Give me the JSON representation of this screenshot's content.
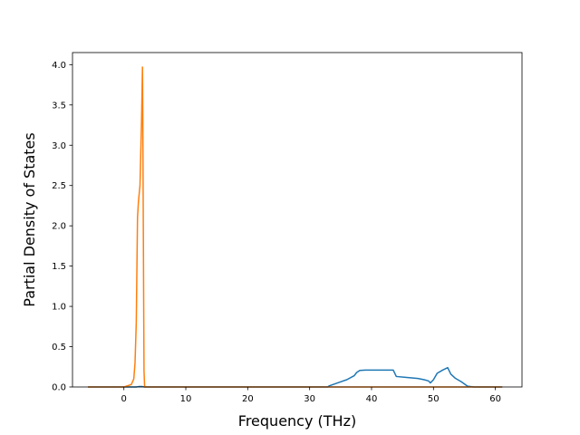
{
  "chart_data": {
    "type": "line",
    "title": "",
    "xlabel": "Frequency (THz)",
    "ylabel": "Partial Density of States",
    "xlim": [
      -8.3,
      64.3
    ],
    "ylim": [
      0,
      4.15
    ],
    "xticks": [
      0,
      10,
      20,
      30,
      40,
      50,
      60
    ],
    "yticks": [
      0.0,
      0.5,
      1.0,
      1.5,
      2.0,
      2.5,
      3.0,
      3.5,
      4.0
    ],
    "xtick_labels": [
      "0",
      "10",
      "20",
      "30",
      "40",
      "50",
      "60"
    ],
    "ytick_labels": [
      "0.0",
      "0.5",
      "1.0",
      "1.5",
      "2.0",
      "2.5",
      "3.0",
      "3.5",
      "4.0"
    ],
    "grid": false,
    "legend": "none",
    "series": [
      {
        "color": "#1f77b4",
        "x": [
          -5.7,
          0,
          2.0,
          2.4,
          3.0,
          3.3,
          30,
          32.9,
          33.2,
          34.5,
          36.0,
          37.2,
          37.6,
          38.1,
          39.0,
          40.5,
          42.0,
          43.5,
          44.0,
          45.5,
          47.5,
          48.5,
          49.2,
          49.5,
          50.0,
          50.6,
          51.5,
          52.3,
          52.8,
          53.5,
          54.5,
          55.5,
          56.5,
          61.0
        ],
        "y": [
          0,
          0,
          0,
          0.005,
          0.005,
          0,
          0,
          0,
          0.015,
          0.05,
          0.09,
          0.14,
          0.18,
          0.205,
          0.21,
          0.21,
          0.21,
          0.21,
          0.13,
          0.12,
          0.105,
          0.09,
          0.075,
          0.05,
          0.09,
          0.17,
          0.21,
          0.24,
          0.16,
          0.11,
          0.065,
          0.01,
          0,
          0
        ]
      },
      {
        "color": "#ff7f0e",
        "x": [
          -5.7,
          0,
          1.2,
          1.6,
          1.8,
          2.0,
          2.2,
          2.35,
          2.6,
          2.85,
          3.0,
          3.05,
          3.25,
          3.35,
          10,
          61.0
        ],
        "y": [
          0,
          0,
          0.03,
          0.1,
          0.3,
          0.8,
          2.1,
          2.3,
          2.5,
          3.3,
          3.97,
          3.4,
          0.2,
          0,
          0,
          0
        ]
      }
    ]
  }
}
